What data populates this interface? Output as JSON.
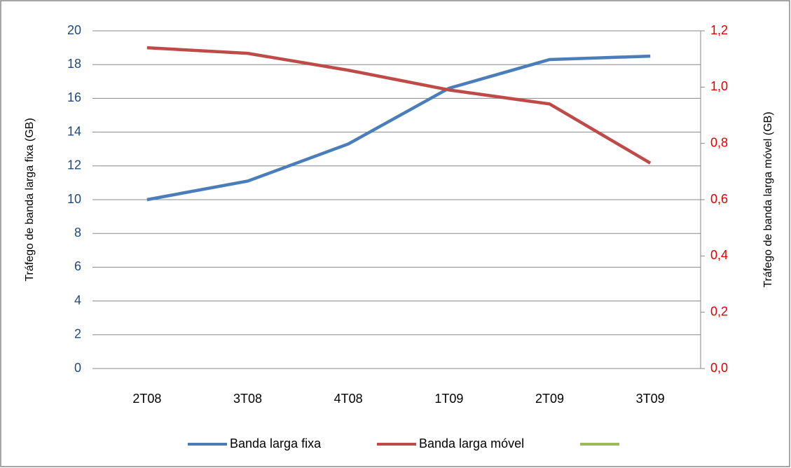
{
  "chart_data": {
    "type": "line",
    "categories": [
      "2T08",
      "3T08",
      "4T08",
      "1T09",
      "2T09",
      "3T09"
    ],
    "series": [
      {
        "name": "Banda larga fixa",
        "color": "#4a7ebb",
        "values": [
          10,
          11.1,
          13.3,
          16.6,
          18.3,
          18.5
        ]
      },
      {
        "name": "Banda larga móvel",
        "color": "#be4b48",
        "axis": "y2",
        "values": [
          1.14,
          1.12,
          1.06,
          0.99,
          0.94,
          0.73
        ]
      }
    ],
    "ylabel": "Tráfego de banda larga fixa (GB)",
    "y2label": "Tráfego de banda larga móvel (GB)",
    "ylim": [
      0,
      20
    ],
    "yticks": [
      0,
      2,
      4,
      6,
      8,
      10,
      12,
      14,
      16,
      18,
      20
    ],
    "y2lim": [
      0,
      1.2
    ],
    "y2ticks": [
      {
        "value": 0,
        "label": "0,0"
      },
      {
        "value": 0.2,
        "label": "0,2"
      },
      {
        "value": 0.4,
        "label": "0,4"
      },
      {
        "value": 0.6,
        "label": "0,6"
      },
      {
        "value": 0.8,
        "label": "0,8"
      },
      {
        "value": 1.0,
        "label": "1,0"
      },
      {
        "value": 1.2,
        "label": "1,2"
      }
    ],
    "grid": true,
    "legend": "bottom"
  }
}
